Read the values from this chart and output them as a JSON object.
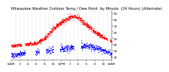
{
  "title": "Milwaukee Weather Outdoor Temp / Dew Point  by Minute  (24 Hours) (Alternate)",
  "title_fontsize": 3.8,
  "bg_color": "#ffffff",
  "plot_bg_color": "#ffffff",
  "temp_color": "#ff0000",
  "dew_color": "#0000ff",
  "grid_color": "#bbbbbb",
  "ylim": [
    15,
    95
  ],
  "xlim": [
    0,
    1440
  ],
  "tick_fontsize": 3.0,
  "marker_size": 0.7,
  "n_minutes": 1440,
  "ytick_vals": [
    20,
    30,
    40,
    50,
    60,
    70,
    80,
    90
  ],
  "grid_interval_min": 60
}
